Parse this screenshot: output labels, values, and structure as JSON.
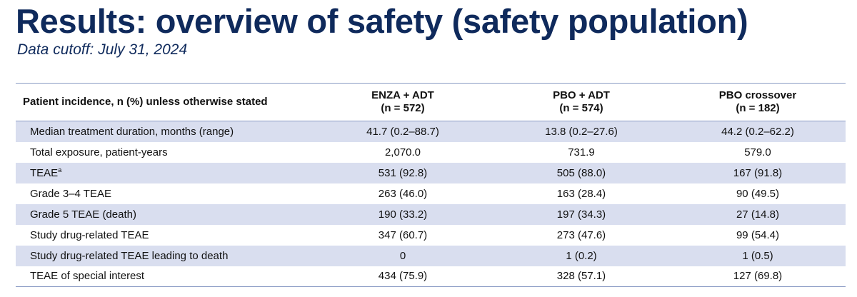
{
  "title": "Results: overview of safety (safety population)",
  "subtitle": "Data cutoff: July 31, 2024",
  "table": {
    "header": {
      "label": "Patient incidence, n (%) unless otherwise stated",
      "columns": [
        {
          "name": "ENZA + ADT",
          "n": "(n = 572)"
        },
        {
          "name": "PBO + ADT",
          "n": "(n = 574)"
        },
        {
          "name": "PBO crossover",
          "n": "(n = 182)"
        }
      ]
    },
    "rows": [
      {
        "label": "Median treatment duration, months (range)",
        "sup": "",
        "values": [
          "41.7 (0.2–88.7)",
          "13.8 (0.2–27.6)",
          "44.2 (0.2–62.2)"
        ]
      },
      {
        "label": "Total exposure, patient-years",
        "sup": "",
        "values": [
          "2,070.0",
          "731.9",
          "579.0"
        ]
      },
      {
        "label": "TEAE",
        "sup": "a",
        "values": [
          "531 (92.8)",
          "505 (88.0)",
          "167 (91.8)"
        ]
      },
      {
        "label": "Grade 3–4 TEAE",
        "sup": "",
        "values": [
          "263 (46.0)",
          "163 (28.4)",
          "90 (49.5)"
        ]
      },
      {
        "label": "Grade 5 TEAE (death)",
        "sup": "",
        "values": [
          "190 (33.2)",
          "197 (34.3)",
          "27 (14.8)"
        ]
      },
      {
        "label": "Study drug-related TEAE",
        "sup": "",
        "values": [
          "347 (60.7)",
          "273 (47.6)",
          "99 (54.4)"
        ]
      },
      {
        "label": "Study drug-related TEAE leading to death",
        "sup": "",
        "values": [
          "0",
          "1 (0.2)",
          "1 (0.5)"
        ]
      },
      {
        "label": "TEAE of special interest",
        "sup": "",
        "values": [
          "434 (75.9)",
          "328 (57.1)",
          "127 (69.8)"
        ]
      }
    ]
  }
}
